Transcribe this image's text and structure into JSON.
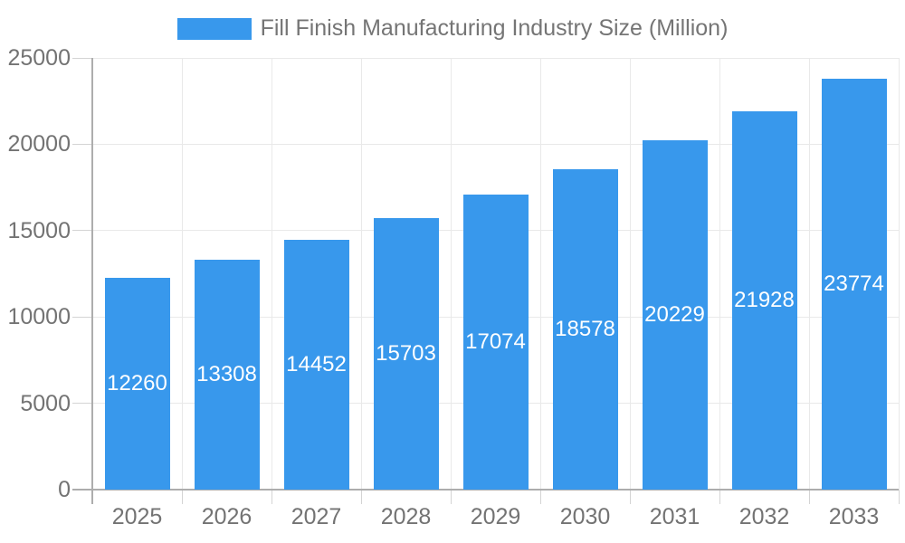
{
  "chart_data": {
    "type": "bar",
    "title": "Fill Finish Manufacturing Industry Size (Million)",
    "categories": [
      "2025",
      "2026",
      "2027",
      "2028",
      "2029",
      "2030",
      "2031",
      "2032",
      "2033"
    ],
    "values": [
      12260,
      13308,
      14452,
      15703,
      17074,
      18578,
      20229,
      21928,
      23774
    ],
    "value_labels": [
      "12260",
      "13308",
      "14452",
      "15703",
      "17074",
      "18578",
      "20229",
      "21928",
      "23774"
    ],
    "xlabel": "",
    "ylabel": "",
    "ylim": [
      0,
      25000
    ],
    "ytick_values": [
      0,
      5000,
      10000,
      15000,
      20000,
      25000
    ],
    "ytick_labels": [
      "0",
      "5000",
      "10000",
      "15000",
      "20000",
      "25000"
    ],
    "grid": "on",
    "legend_position": "top-center",
    "colors": {
      "bar": "#3898EC",
      "grid": "#e9e9e9",
      "tick": "#d4d4d4",
      "axis": "#adadad",
      "tick_text": "#737373",
      "legend_text": "#757575",
      "value_text": "#ffffff"
    }
  }
}
